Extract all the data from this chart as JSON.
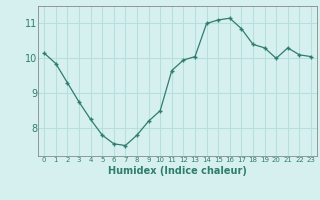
{
  "x": [
    0,
    1,
    2,
    3,
    4,
    5,
    6,
    7,
    8,
    9,
    10,
    11,
    12,
    13,
    14,
    15,
    16,
    17,
    18,
    19,
    20,
    21,
    22,
    23
  ],
  "y": [
    10.15,
    9.85,
    9.3,
    8.75,
    8.25,
    7.8,
    7.55,
    7.5,
    7.8,
    8.2,
    8.5,
    9.65,
    9.95,
    10.05,
    11.0,
    11.1,
    11.15,
    10.85,
    10.4,
    10.3,
    10.0,
    10.3,
    10.1,
    10.05
  ],
  "xlabel": "Humidex (Indice chaleur)",
  "ylim": [
    7.2,
    11.5
  ],
  "xlim": [
    -0.5,
    23.5
  ],
  "line_color": "#2e7d6e",
  "marker": "+",
  "bg_color": "#d6f0f0",
  "grid_color": "#b8dede",
  "yticks": [
    8,
    9,
    10,
    11
  ],
  "xtick_labels": [
    "0",
    "1",
    "2",
    "3",
    "4",
    "5",
    "6",
    "7",
    "8",
    "9",
    "10",
    "11",
    "12",
    "13",
    "14",
    "15",
    "16",
    "17",
    "18",
    "19",
    "20",
    "21",
    "22",
    "23"
  ]
}
